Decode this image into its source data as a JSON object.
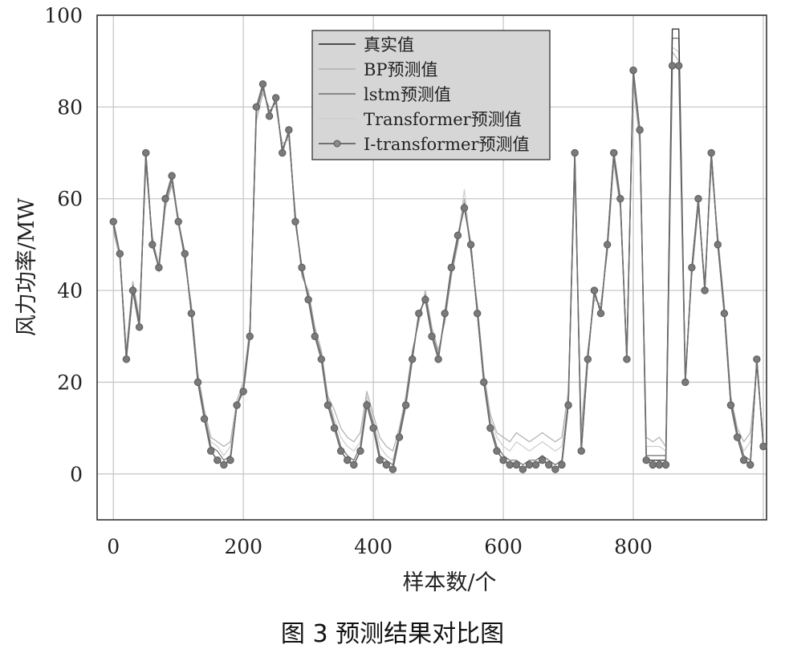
{
  "caption": "图 3    预测结果对比图",
  "chart_data": {
    "type": "line",
    "title": "",
    "xlabel": "样本数/个",
    "ylabel": "风力功率/MW",
    "xlim": [
      -25,
      1005
    ],
    "ylim": [
      -10,
      100
    ],
    "xticks": [
      0,
      200,
      400,
      600,
      800
    ],
    "yticks": [
      0,
      20,
      40,
      60,
      80,
      100
    ],
    "xtick_labels": [
      "0",
      "200",
      "400",
      "600",
      "800"
    ],
    "ytick_labels": [
      "0",
      "20",
      "40",
      "60",
      "80",
      "100"
    ],
    "grid": true,
    "legend_position": "top-center",
    "x": [
      0,
      10,
      20,
      30,
      40,
      50,
      60,
      70,
      80,
      90,
      100,
      110,
      120,
      130,
      140,
      150,
      160,
      170,
      180,
      190,
      200,
      210,
      220,
      230,
      240,
      250,
      260,
      270,
      280,
      290,
      300,
      310,
      320,
      330,
      340,
      350,
      360,
      370,
      380,
      390,
      400,
      410,
      420,
      430,
      440,
      450,
      460,
      470,
      480,
      490,
      500,
      510,
      520,
      530,
      540,
      550,
      560,
      570,
      580,
      590,
      600,
      610,
      620,
      630,
      640,
      650,
      660,
      670,
      680,
      690,
      700,
      710,
      720,
      730,
      740,
      750,
      760,
      770,
      780,
      790,
      800,
      810,
      820,
      830,
      840,
      850,
      860,
      870,
      880,
      890,
      900,
      910,
      920,
      930,
      940,
      950,
      960,
      970,
      980,
      990,
      1000
    ],
    "series": [
      {
        "name": "真实值",
        "color": "#3a3a3a",
        "width": 1.4,
        "marker": false,
        "values": [
          55,
          48,
          25,
          40,
          32,
          70,
          50,
          45,
          60,
          65,
          55,
          48,
          35,
          20,
          12,
          5,
          3,
          2,
          3,
          15,
          18,
          30,
          80,
          85,
          78,
          82,
          70,
          75,
          55,
          45,
          38,
          30,
          25,
          15,
          10,
          5,
          3,
          2,
          5,
          15,
          10,
          3,
          2,
          1,
          8,
          15,
          25,
          35,
          38,
          30,
          25,
          35,
          45,
          52,
          58,
          50,
          35,
          20,
          10,
          5,
          3,
          2,
          2,
          1,
          2,
          2,
          3,
          2,
          1,
          2,
          15,
          70,
          5,
          25,
          40,
          35,
          50,
          70,
          60,
          25,
          88,
          75,
          3,
          3,
          3,
          3,
          97,
          97,
          20,
          45,
          60,
          40,
          70,
          50,
          35,
          15,
          8,
          3,
          2,
          25,
          6
        ]
      },
      {
        "name": "BP预测值",
        "color": "#b0b0b0",
        "width": 1.2,
        "marker": false,
        "values": [
          53,
          47,
          27,
          42,
          34,
          67,
          52,
          44,
          58,
          63,
          56,
          46,
          37,
          22,
          14,
          8,
          7,
          6,
          7,
          16,
          20,
          32,
          77,
          83,
          80,
          80,
          72,
          73,
          57,
          43,
          40,
          32,
          27,
          17,
          14,
          10,
          8,
          7,
          9,
          18,
          13,
          8,
          6,
          5,
          10,
          17,
          27,
          33,
          40,
          32,
          27,
          33,
          43,
          50,
          60,
          48,
          37,
          22,
          13,
          9,
          8,
          7,
          9,
          8,
          7,
          8,
          9,
          8,
          7,
          8,
          18,
          65,
          10,
          27,
          38,
          37,
          48,
          68,
          58,
          27,
          85,
          72,
          8,
          7,
          8,
          6,
          92,
          90,
          22,
          43,
          58,
          42,
          67,
          52,
          37,
          17,
          10,
          7,
          9,
          23,
          8
        ]
      },
      {
        "name": "lstm预测值",
        "color": "#6e6e6e",
        "width": 1.2,
        "marker": false,
        "values": [
          54,
          48,
          26,
          41,
          33,
          68,
          51,
          45,
          59,
          64,
          55,
          47,
          36,
          21,
          13,
          6,
          5,
          3,
          4,
          15,
          19,
          31,
          79,
          84,
          79,
          81,
          71,
          74,
          56,
          44,
          39,
          31,
          26,
          16,
          11,
          6,
          4,
          3,
          6,
          16,
          11,
          4,
          3,
          2,
          9,
          16,
          26,
          34,
          39,
          31,
          26,
          34,
          44,
          51,
          59,
          49,
          36,
          21,
          11,
          6,
          4,
          3,
          3,
          2,
          3,
          3,
          4,
          3,
          2,
          3,
          16,
          68,
          6,
          26,
          39,
          36,
          49,
          69,
          59,
          26,
          87,
          74,
          4,
          4,
          4,
          4,
          95,
          95,
          21,
          44,
          59,
          41,
          69,
          51,
          36,
          16,
          9,
          4,
          3,
          24,
          7
        ]
      },
      {
        "name": "Transformer预测值",
        "color": "#cdcdcd",
        "width": 1.2,
        "marker": false,
        "values": [
          54,
          47,
          26,
          41,
          33,
          69,
          51,
          46,
          59,
          64,
          54,
          47,
          36,
          21,
          13,
          7,
          6,
          4,
          6,
          15,
          19,
          31,
          78,
          84,
          79,
          81,
          71,
          74,
          56,
          44,
          39,
          31,
          26,
          17,
          12,
          8,
          6,
          5,
          7,
          17,
          12,
          6,
          4,
          3,
          9,
          16,
          26,
          34,
          39,
          31,
          26,
          34,
          44,
          51,
          62,
          49,
          36,
          21,
          12,
          8,
          6,
          5,
          7,
          6,
          5,
          6,
          7,
          6,
          5,
          6,
          17,
          67,
          8,
          26,
          39,
          36,
          49,
          69,
          59,
          26,
          86,
          73,
          6,
          6,
          6,
          5,
          93,
          92,
          21,
          44,
          59,
          41,
          68,
          51,
          36,
          16,
          9,
          5,
          7,
          24,
          7
        ]
      },
      {
        "name": "I-transformer预测值",
        "color": "#707070",
        "width": 1.6,
        "marker": true,
        "values": [
          55,
          48,
          25,
          40,
          32,
          70,
          50,
          45,
          60,
          65,
          55,
          48,
          35,
          20,
          12,
          5,
          3,
          2,
          3,
          15,
          18,
          30,
          80,
          85,
          78,
          82,
          70,
          75,
          55,
          45,
          38,
          30,
          25,
          15,
          10,
          5,
          3,
          2,
          5,
          15,
          10,
          3,
          2,
          1,
          8,
          15,
          25,
          35,
          38,
          30,
          25,
          35,
          45,
          52,
          58,
          50,
          35,
          20,
          10,
          5,
          3,
          2,
          2,
          1,
          2,
          2,
          3,
          2,
          1,
          2,
          15,
          70,
          5,
          25,
          40,
          35,
          50,
          70,
          60,
          25,
          88,
          75,
          3,
          2,
          2,
          2,
          89,
          89,
          20,
          45,
          60,
          40,
          70,
          50,
          35,
          15,
          8,
          3,
          2,
          25,
          6
        ]
      }
    ]
  }
}
